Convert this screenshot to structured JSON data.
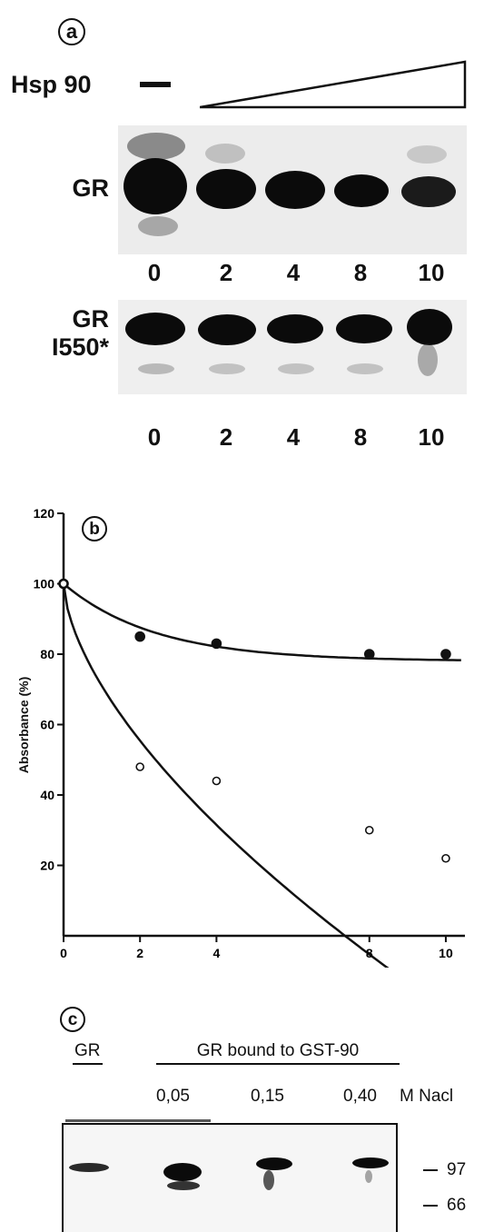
{
  "panel_a": {
    "letter": "a",
    "treatment_label": "Hsp 90",
    "row1_label": "GR",
    "row2_label_line1": "GR",
    "row2_label_line2": "I550*",
    "lanes": [
      "0",
      "2",
      "4",
      "8",
      "10"
    ]
  },
  "panel_b": {
    "letter": "b"
  },
  "chart_data": {
    "type": "scatter",
    "ylabel": "Absorbance (%)",
    "xlabel": "",
    "xlim": [
      0,
      10.5
    ],
    "ylim": [
      0,
      120
    ],
    "x_ticks": [
      "0",
      "2",
      "4",
      "8",
      "10"
    ],
    "y_ticks": [
      "20",
      "40",
      "60",
      "80",
      "100",
      "120"
    ],
    "x_tick_positions_data": [
      0,
      2,
      4,
      8,
      10
    ],
    "series": [
      {
        "marker": "filled",
        "x": [
          0,
          2,
          4,
          8,
          10
        ],
        "values": [
          100,
          85,
          83,
          80,
          80
        ]
      },
      {
        "marker": "open",
        "x": [
          0,
          2,
          4,
          8,
          10
        ],
        "values": [
          100,
          48,
          44,
          30,
          22
        ]
      }
    ]
  },
  "panel_c": {
    "letter": "c",
    "gr_label": "GR",
    "bound_label": "GR bound to GST-90",
    "salt_concs": [
      "0,05",
      "0,15",
      "0,40"
    ],
    "salt_unit": "M Nacl",
    "markers": [
      "97",
      "66"
    ]
  }
}
